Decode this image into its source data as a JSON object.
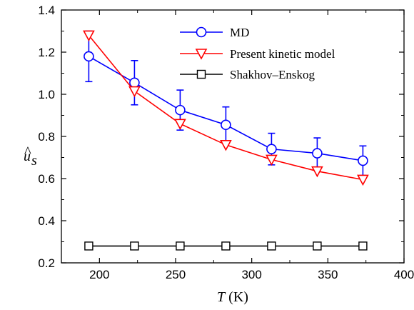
{
  "chart_data": {
    "type": "line",
    "x": [
      193,
      223,
      253,
      283,
      313,
      343,
      373
    ],
    "xlabel": {
      "var": "T",
      "unit": " (K)"
    },
    "ylabel": {
      "base": "u",
      "hat": "^",
      "sub": "s"
    },
    "xlim": [
      175,
      400
    ],
    "ylim": [
      0.2,
      1.4
    ],
    "xticks": [
      200,
      250,
      300,
      350,
      400
    ],
    "yticks": [
      0.2,
      0.4,
      0.6,
      0.8,
      1.0,
      1.2,
      1.4
    ],
    "xtick_labels": [
      "200",
      "250",
      "300",
      "350",
      "400"
    ],
    "ytick_labels": [
      "0.2",
      "0.4",
      "0.6",
      "0.8",
      "1.0",
      "1.2",
      "1.4"
    ],
    "legend_position": "top-center",
    "grid": false,
    "series": [
      {
        "name": "MD",
        "color": "#0000ff",
        "marker": "circle",
        "values": [
          1.18,
          1.055,
          0.925,
          0.855,
          0.74,
          0.72,
          0.685
        ],
        "error": [
          0.12,
          0.105,
          0.095,
          0.085,
          0.075,
          0.073,
          0.07
        ]
      },
      {
        "name": "Present kinetic model",
        "color": "#ff0000",
        "marker": "triangle-down",
        "values": [
          1.28,
          1.015,
          0.86,
          0.76,
          0.69,
          0.635,
          0.595
        ]
      },
      {
        "name": "Shakhov–Enskog",
        "color": "#000000",
        "marker": "square",
        "values": [
          0.28,
          0.28,
          0.28,
          0.28,
          0.28,
          0.28,
          0.28
        ]
      }
    ]
  }
}
